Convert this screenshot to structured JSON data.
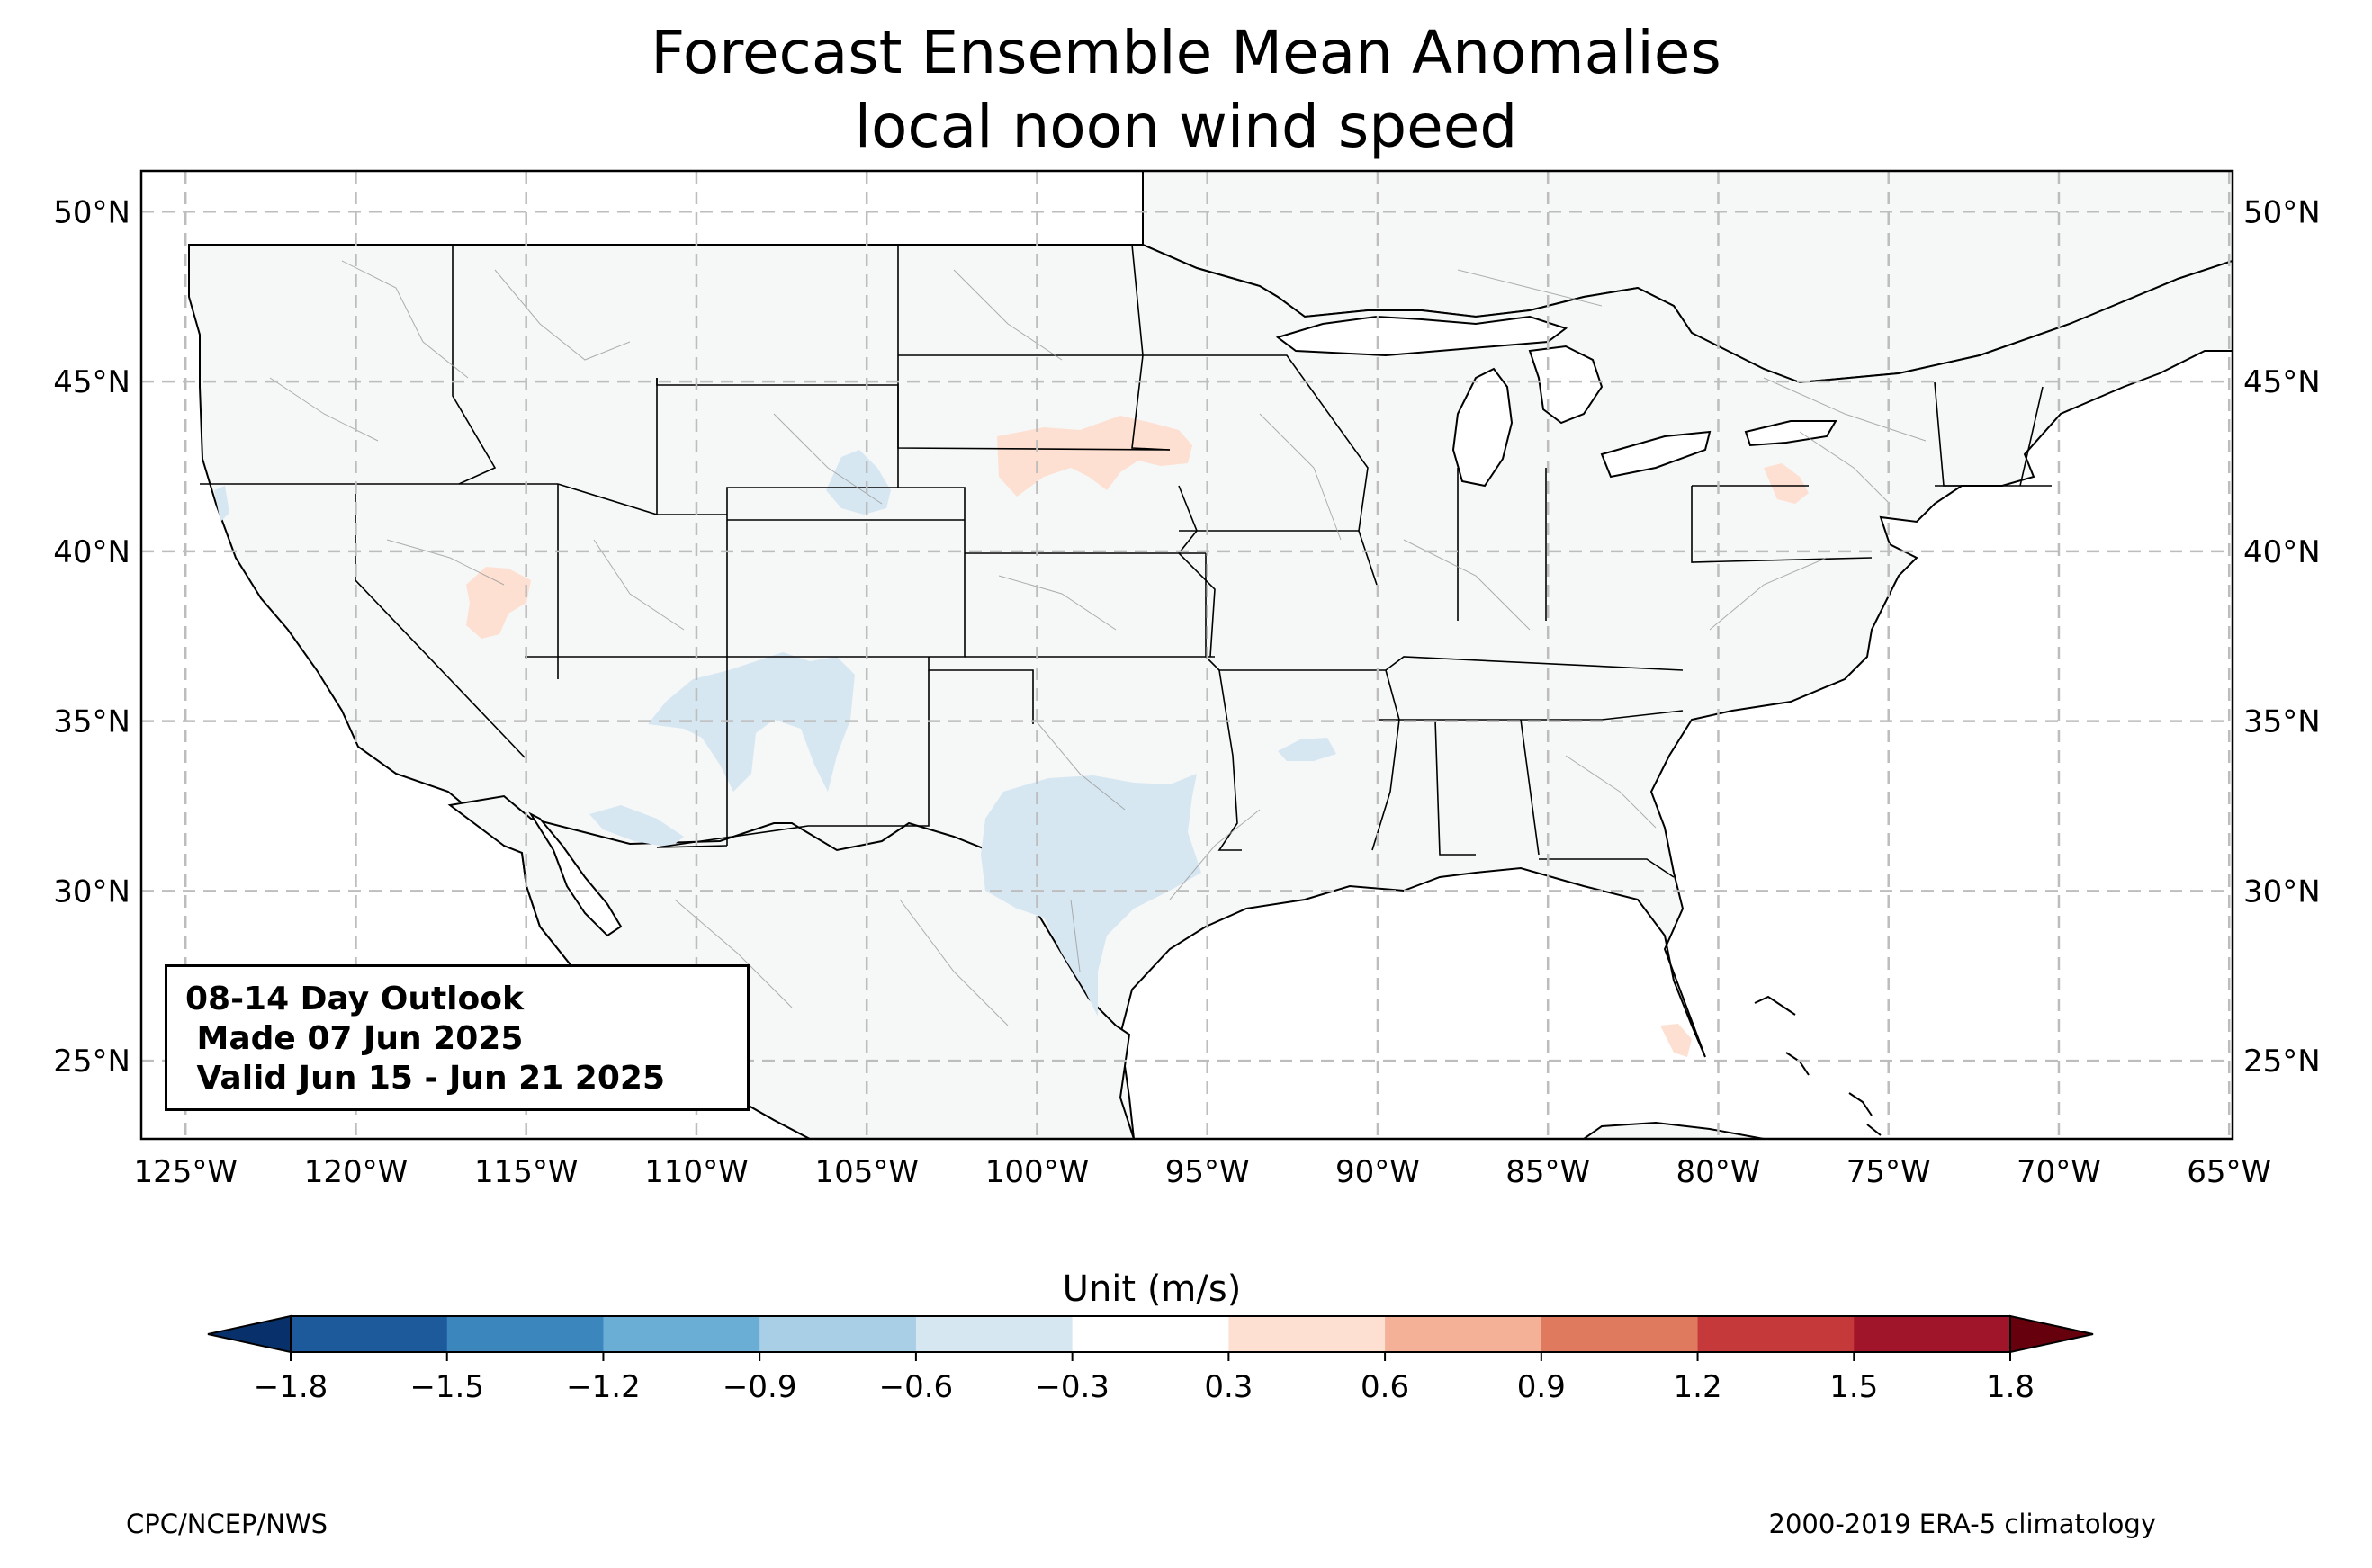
{
  "title": "Forecast Ensemble Mean Anomalies",
  "subtitle": "local noon wind speed",
  "map": {
    "lon_range": [
      -126.3,
      -64.9
    ],
    "lat_range": [
      22.7,
      51.2
    ],
    "lon_ticks": [
      "125°W",
      "120°W",
      "115°W",
      "110°W",
      "105°W",
      "100°W",
      "95°W",
      "90°W",
      "85°W",
      "80°W",
      "75°W",
      "70°W",
      "65°W"
    ],
    "lat_ticks": [
      "50°N",
      "45°N",
      "40°N",
      "35°N",
      "30°N",
      "25°N"
    ],
    "land_color": "#f6f7f7",
    "water_color": "#ffffff",
    "gridlines": true
  },
  "outlook_box": {
    "line1": "08-14 Day Outlook",
    "line2": " Made 07 Jun 2025",
    "line3": " Valid Jun 15 - Jun 21 2025"
  },
  "colorbar": {
    "label": "Unit (m/s)",
    "tick_labels": [
      "−1.8",
      "−1.5",
      "−1.2",
      "−0.9",
      "−0.6",
      "−0.3",
      "0.3",
      "0.6",
      "0.9",
      "1.2",
      "1.5",
      "1.8"
    ],
    "colors": [
      "#08306b",
      "#1c5a9c",
      "#3a86bd",
      "#6aaed6",
      "#a8cfe6",
      "#d6e7f2",
      "#ffffff",
      "#fde0d2",
      "#f5b197",
      "#e07a5f",
      "#c5393a",
      "#a01529",
      "#67000d"
    ]
  },
  "footer": {
    "left": "CPC/NCEP/NWS",
    "right": "2000-2019 ERA-5 climatology"
  }
}
